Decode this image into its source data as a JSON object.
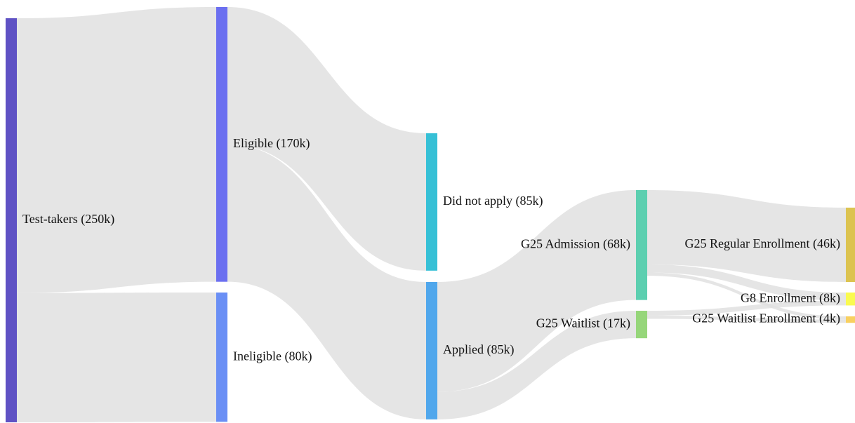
{
  "chart_data": {
    "type": "sankey",
    "nodes": [
      {
        "label": "Test-takers (250k)",
        "value": 250000,
        "color": "#5f52c4"
      },
      {
        "label": "Eligible (170k)",
        "value": 170000,
        "color": "#6b6ff0"
      },
      {
        "label": "Ineligible (80k)",
        "value": 80000,
        "color": "#6a8ff5"
      },
      {
        "label": "Did not apply (85k)",
        "value": 85000,
        "color": "#36c0d6"
      },
      {
        "label": "Applied (85k)",
        "value": 85000,
        "color": "#50a7ec"
      },
      {
        "label": "G25 Admission (68k)",
        "value": 68000,
        "color": "#5ccfb0"
      },
      {
        "label": "G25 Waitlist (17k)",
        "value": 17000,
        "color": "#96d67a"
      },
      {
        "label": "G25 Regular Enrollment (46k)",
        "value": 46000,
        "color": "#dcc350"
      },
      {
        "label": "G8 Enrollment (8k)",
        "value": 8000,
        "color": "#fafa50"
      },
      {
        "label": "G25 Waitlist Enrollment (4k)",
        "value": 4000,
        "color": "#f8d060"
      }
    ],
    "links": [
      {
        "source": 0,
        "target": 1,
        "value": 170000
      },
      {
        "source": 0,
        "target": 2,
        "value": 80000
      },
      {
        "source": 1,
        "target": 3,
        "value": 85000
      },
      {
        "source": 1,
        "target": 4,
        "value": 85000
      },
      {
        "source": 4,
        "target": 5,
        "value": 68000
      },
      {
        "source": 4,
        "target": 6,
        "value": 17000
      },
      {
        "source": 5,
        "target": 7,
        "value": 46000
      },
      {
        "source": 5,
        "target": 8,
        "value": 5000
      },
      {
        "source": 5,
        "target": 9,
        "value": 2000
      },
      {
        "source": 6,
        "target": 8,
        "value": 3000
      },
      {
        "source": 6,
        "target": 9,
        "value": 2000
      }
    ],
    "link_color": "#e0e0e0"
  }
}
